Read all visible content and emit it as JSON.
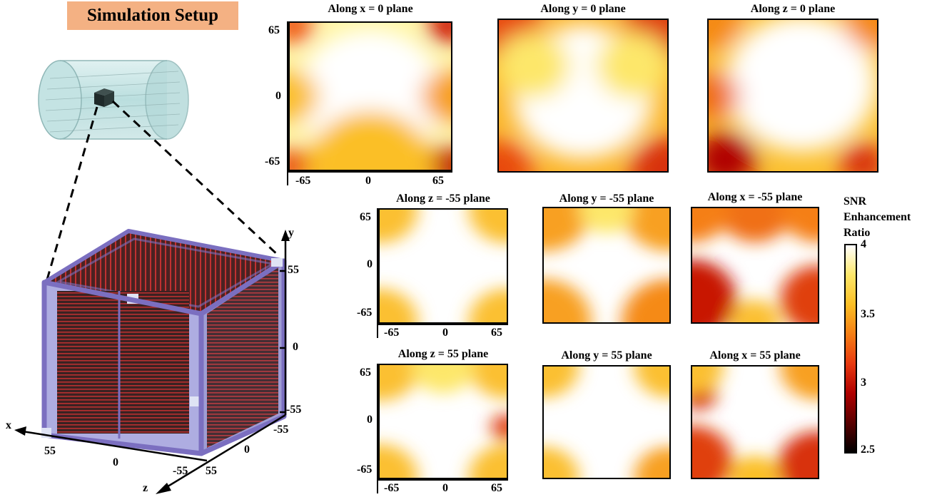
{
  "setup": {
    "title": "Simulation Setup",
    "axes": {
      "x_label": "x",
      "y_label": "y",
      "z_label": "z",
      "y_ticks": [
        "55",
        "0",
        "-55"
      ],
      "z_ticks": [
        "-55",
        "0",
        "55"
      ],
      "x_ticks": [
        "55",
        "0",
        "-55"
      ]
    }
  },
  "panels": [
    {
      "title": "Along x = 0 plane",
      "yticks": [
        "65",
        "0",
        "-65"
      ],
      "xticks": [
        "-65",
        "0",
        "65"
      ],
      "pattern": "x0"
    },
    {
      "title": "Along y = 0 plane",
      "pattern": "y0"
    },
    {
      "title": "Along z = 0 plane",
      "pattern": "z0"
    },
    {
      "title": "Along z = -55 plane",
      "yticks": [
        "65",
        "0",
        "-65"
      ],
      "xticks": [
        "-65",
        "0",
        "65"
      ],
      "pattern": "zm55"
    },
    {
      "title": "Along y = -55 plane",
      "pattern": "ym55"
    },
    {
      "title": "Along x = -55 plane",
      "pattern": "xm55"
    },
    {
      "title": "Along z = 55 plane",
      "yticks": [
        "65",
        "0",
        "-65"
      ],
      "xticks": [
        "-65",
        "0",
        "65"
      ],
      "pattern": "z55"
    },
    {
      "title": "Along y = 55 plane",
      "pattern": "y55"
    },
    {
      "title": "Along x = 55 plane",
      "pattern": "x55"
    }
  ],
  "colorbar": {
    "title_lines": [
      "SNR",
      "Enhancement",
      "Ratio"
    ],
    "ticks": [
      "4",
      "3.5",
      "3",
      "2.5"
    ],
    "min": 2.5,
    "max": 4,
    "colors": [
      "#000000",
      "#5a0000",
      "#b00000",
      "#e83a10",
      "#f57f15",
      "#fbbf25",
      "#fde76a",
      "#ffffff"
    ]
  }
}
